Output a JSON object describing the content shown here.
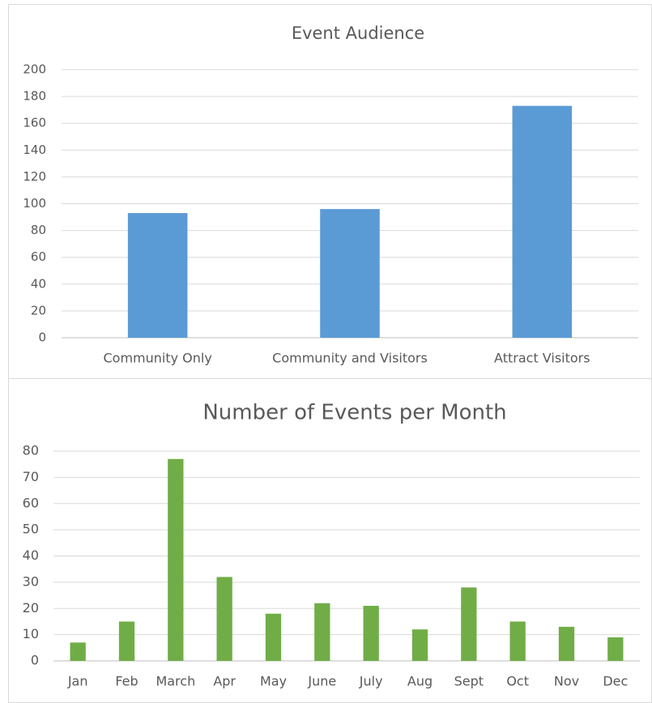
{
  "chart_data": [
    {
      "type": "bar",
      "title": "Event Audience",
      "categories": [
        "Community Only",
        "Community and Visitors",
        "Attract Visitors"
      ],
      "values": [
        93,
        96,
        173
      ],
      "color": "#5b9bd5",
      "ylim": [
        0,
        200
      ],
      "yticks": [
        0,
        20,
        40,
        60,
        80,
        100,
        120,
        140,
        160,
        180,
        200
      ],
      "grid": true
    },
    {
      "type": "bar",
      "title": "Number of Events per Month",
      "categories": [
        "Jan",
        "Feb",
        "March",
        "Apr",
        "May",
        "June",
        "July",
        "Aug",
        "Sept",
        "Oct",
        "Nov",
        "Dec"
      ],
      "values": [
        7,
        15,
        77,
        32,
        18,
        22,
        21,
        12,
        28,
        15,
        13,
        9
      ],
      "color": "#70ad47",
      "ylim": [
        0,
        80
      ],
      "yticks": [
        0,
        10,
        20,
        30,
        40,
        50,
        60,
        70,
        80
      ],
      "grid": true
    }
  ]
}
